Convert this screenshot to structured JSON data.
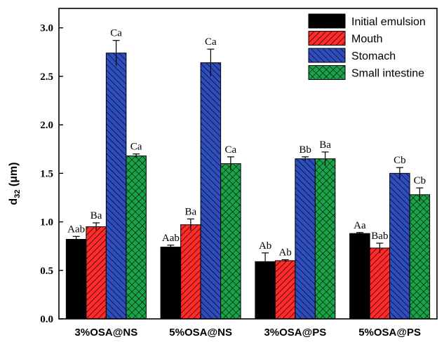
{
  "chart_data": {
    "type": "bar",
    "categories": [
      "3%OSA@NS",
      "5%OSA@NS",
      "3%OSA@PS",
      "5%OSA@PS"
    ],
    "series": [
      {
        "name": "Initial emulsion",
        "color": "#000000",
        "pattern": "solid",
        "values": [
          0.82,
          0.74,
          0.59,
          0.88
        ],
        "errors": [
          0.03,
          0.02,
          0.09,
          0.01
        ],
        "labels": [
          "Aab",
          "Aab",
          "Ab",
          "Aa"
        ]
      },
      {
        "name": "Mouth",
        "color": "#ff2a2a",
        "pattern": "diagonal-right",
        "values": [
          0.95,
          0.97,
          0.6,
          0.73
        ],
        "errors": [
          0.04,
          0.06,
          0.01,
          0.05
        ],
        "labels": [
          "Ba",
          "Ba",
          "Ab",
          "Bab"
        ]
      },
      {
        "name": "Stomach",
        "color": "#2e4dbf",
        "pattern": "diagonal-left",
        "values": [
          2.74,
          2.64,
          1.65,
          1.5
        ],
        "errors": [
          0.13,
          0.14,
          0.02,
          0.06
        ],
        "labels": [
          "Ca",
          "Ca",
          "Bb",
          "Cb"
        ]
      },
      {
        "name": "Small intestine",
        "color": "#1aa347",
        "pattern": "crosshatch",
        "values": [
          1.68,
          1.6,
          1.65,
          1.28
        ],
        "errors": [
          0.02,
          0.07,
          0.07,
          0.07
        ],
        "labels": [
          "Ca",
          "Ca",
          "Ba",
          "Cb"
        ]
      }
    ],
    "y_label_main": "d",
    "y_label_sub": "32",
    "y_label_unit": " (μm)",
    "ylim": [
      0.0,
      3.2
    ],
    "yticks": [
      "0.0",
      "0.5",
      "1.0",
      "1.5",
      "2.0",
      "2.5",
      "3.0"
    ],
    "legend_position": "top-right",
    "grid": false
  }
}
